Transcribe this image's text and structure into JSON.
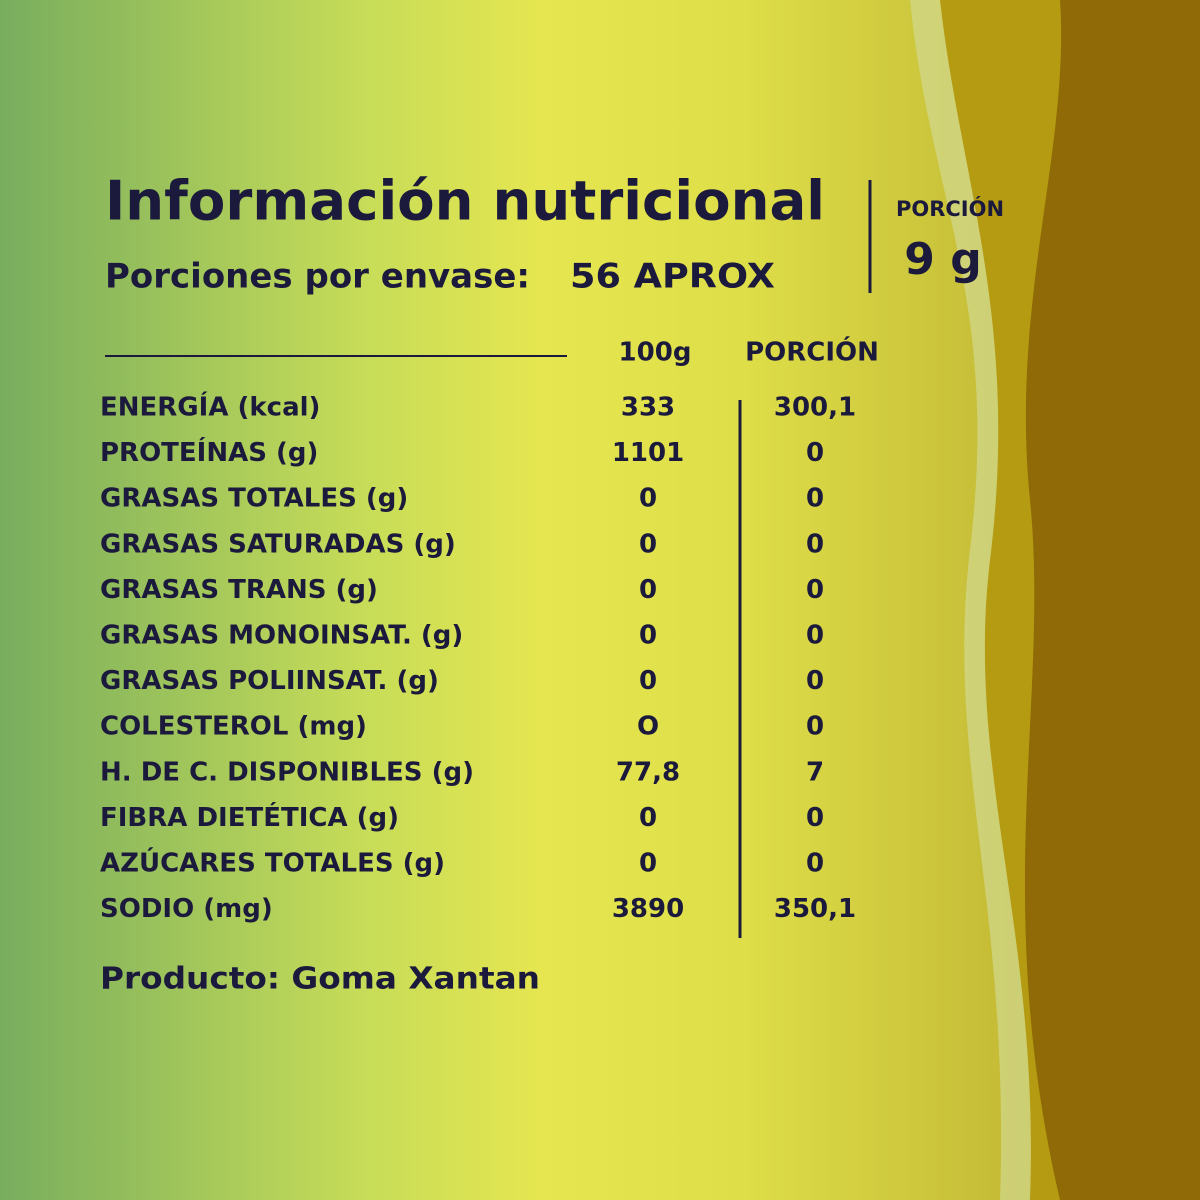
{
  "header": {
    "title": "Información nutricional",
    "servings_label": "Porciones por envase:",
    "servings_value": "56 APROX",
    "portion_label": "PORCIÓN",
    "portion_value": "9 g"
  },
  "table": {
    "columns": [
      "100g",
      "PORCIÓN"
    ],
    "rows": [
      [
        "ENERGÍA (kcal)",
        "333",
        "300,1"
      ],
      [
        "PROTEÍNAS (g)",
        "1101",
        "0"
      ],
      [
        "GRASAS TOTALES (g)",
        "0",
        "0"
      ],
      [
        "GRASAS SATURADAS (g)",
        "0",
        "0"
      ],
      [
        "GRASAS TRANS (g)",
        "0",
        "0"
      ],
      [
        "GRASAS MONOINSAT. (g)",
        "0",
        "0"
      ],
      [
        "GRASAS POLIINSAT. (g)",
        "0",
        "0"
      ],
      [
        "COLESTEROL (mg)",
        "O",
        "0"
      ],
      [
        "H. DE C. DISPONIBLES (g)",
        "77,8",
        "7"
      ],
      [
        "FIBRA DIETÉTICA (g)",
        "0",
        "0"
      ],
      [
        "AZÚCARES TOTALES (g)",
        "0",
        "0"
      ],
      [
        "SODIO (mg)",
        "3890",
        "350,1"
      ]
    ]
  },
  "footer": {
    "product": "Producto: Goma Xantan"
  }
}
